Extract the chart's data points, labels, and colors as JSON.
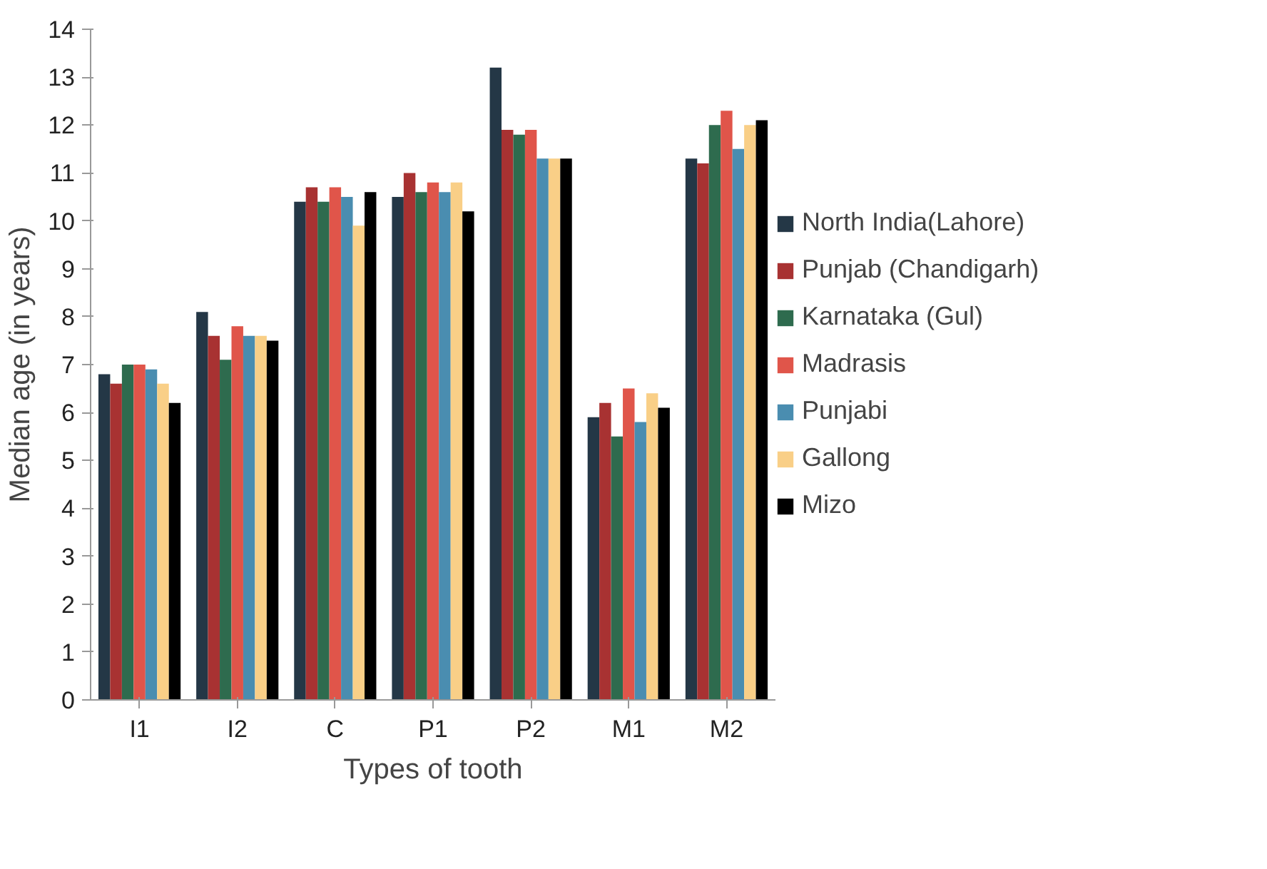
{
  "chart_data": {
    "type": "bar",
    "xlabel": "Types of tooth",
    "ylabel": "Median age (in years)",
    "categories": [
      "I1",
      "I2",
      "C",
      "P1",
      "P2",
      "M1",
      "M2"
    ],
    "series": [
      {
        "name": "North India(Lahore)",
        "color": "#243746",
        "values": [
          6.8,
          8.1,
          10.4,
          10.5,
          13.2,
          5.9,
          11.3
        ]
      },
      {
        "name": "Punjab (Chandigarh)",
        "color": "#a83232",
        "values": [
          6.6,
          7.6,
          10.7,
          11.0,
          11.9,
          6.2,
          11.2
        ]
      },
      {
        "name": "Karnataka (Gul)",
        "color": "#2e6b4e",
        "values": [
          7.0,
          7.1,
          10.4,
          10.6,
          11.8,
          5.5,
          12.0
        ]
      },
      {
        "name": "Madrasis",
        "color": "#e0554a",
        "values": [
          7.0,
          7.8,
          10.7,
          10.8,
          11.9,
          6.5,
          12.3
        ]
      },
      {
        "name": "Punjabi",
        "color": "#4a8db0",
        "values": [
          6.9,
          7.6,
          10.5,
          10.6,
          11.3,
          5.8,
          11.5
        ]
      },
      {
        "name": "Gallong",
        "color": "#f9cf87",
        "values": [
          6.6,
          7.6,
          9.9,
          10.8,
          11.3,
          6.4,
          12.0
        ]
      },
      {
        "name": "Mizo",
        "color": "#000000",
        "values": [
          6.2,
          7.5,
          10.6,
          10.2,
          11.3,
          6.1,
          12.1
        ]
      }
    ],
    "ylim": [
      0,
      14
    ],
    "yticks": [
      0,
      1,
      2,
      3,
      4,
      5,
      6,
      7,
      8,
      9,
      10,
      11,
      12,
      13,
      14
    ],
    "grid": false,
    "legend": "right"
  }
}
